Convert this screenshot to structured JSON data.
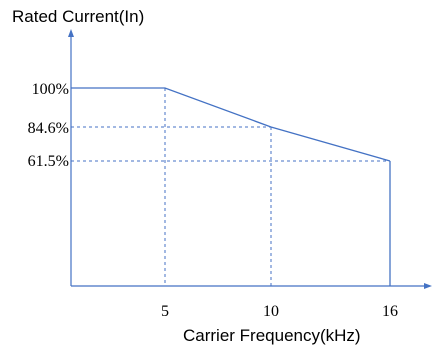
{
  "chart_data": {
    "type": "line",
    "ylabel": "Rated Current(In)",
    "xlabel": "Carrier Frequency(kHz)",
    "x_ticks": [
      "5",
      "10",
      "16"
    ],
    "y_ticks": [
      "100%",
      "84.6%",
      "61.5%"
    ],
    "series": [
      {
        "x": [
          0,
          5,
          10,
          16
        ],
        "y": [
          100,
          100,
          84.6,
          61.5
        ]
      }
    ],
    "drop_to_zero_at_x": 16,
    "reference_lines": [
      {
        "x": 5,
        "y": 100
      },
      {
        "x": 10,
        "y": 84.6
      },
      {
        "x": 16,
        "y": 61.5
      }
    ],
    "grid": false,
    "colors": {
      "line": "#4472c4",
      "dashed": "#4472c4",
      "axis": "#4472c4",
      "text": "#000000"
    }
  }
}
